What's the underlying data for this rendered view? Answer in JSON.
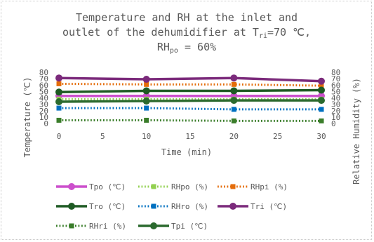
{
  "chart_data": {
    "type": "line",
    "title_line1": "Temperature and RH at the inlet and",
    "title_line2_pre": "outlet of the dehumidifier at T",
    "title_line2_sub": "ri",
    "title_line2_post": "=70 ℃,",
    "title_line3_pre": "RH",
    "title_line3_sub": "po",
    "title_line3_post": " = 60%",
    "xlabel": "Time (min)",
    "ylabel_left": "Temperature (℃)",
    "ylabel_right": "Relative Humidity (%)",
    "x_ticks": [
      0,
      5,
      10,
      15,
      20,
      25,
      30
    ],
    "y_ticks_left": [
      0,
      10,
      20,
      30,
      40,
      50,
      60,
      70,
      80
    ],
    "y_ticks_right": [
      0,
      10,
      20,
      30,
      40,
      50,
      60,
      70,
      80
    ],
    "xlim": [
      0,
      30
    ],
    "ylim": [
      0,
      80
    ],
    "x": [
      0,
      10,
      20,
      30
    ],
    "grid": false,
    "legend_position": "bottom",
    "series": [
      {
        "name": "Tpo (℃)",
        "axis": "left",
        "values": [
          43,
          43,
          43,
          43
        ],
        "color": "#cc4fcc",
        "dash": "solid"
      },
      {
        "name": "RHpo (%)",
        "axis": "right",
        "values": [
          38,
          38,
          38,
          38
        ],
        "color": "#92d050",
        "dash": "dotted"
      },
      {
        "name": "RHpi (%)",
        "axis": "right",
        "values": [
          62,
          61,
          61,
          59
        ],
        "color": "#e46c0a",
        "dash": "dotted"
      },
      {
        "name": "Tro (℃)",
        "axis": "left",
        "values": [
          49,
          51,
          51,
          52
        ],
        "color": "#1e5a23",
        "dash": "solid"
      },
      {
        "name": "RHro (%)",
        "axis": "right",
        "values": [
          24,
          24,
          22,
          22
        ],
        "color": "#0070c0",
        "dash": "dotted"
      },
      {
        "name": "Tri (℃)",
        "axis": "left",
        "values": [
          71,
          69,
          71,
          66
        ],
        "color": "#7b2a7b",
        "dash": "solid"
      },
      {
        "name": "RHri (%)",
        "axis": "right",
        "values": [
          5,
          5,
          4,
          4
        ],
        "color": "#3a7d2a",
        "dash": "dotted"
      },
      {
        "name": "Tpi (℃)",
        "axis": "left",
        "values": [
          34,
          35,
          36,
          36
        ],
        "color": "#2b6a2e",
        "dash": "solid"
      }
    ]
  }
}
